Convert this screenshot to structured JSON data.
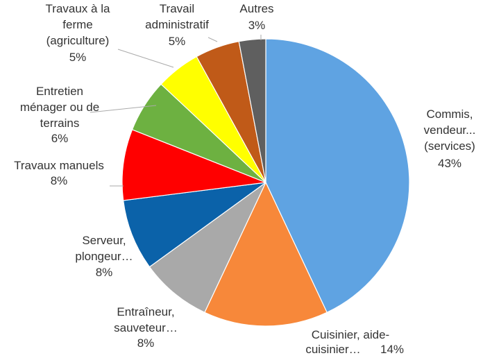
{
  "chart_data": {
    "type": "pie",
    "categories": [
      "Commis,\nvendeur...\n(services)",
      "Cuisinier, aide-\ncuisinier…",
      "Entraîneur,\nsauveteur…",
      "Serveur,\nplongeur…",
      "Travaux manuels",
      "Entretien\nménager ou de\nterrains",
      "Travaux à la\nferme\n(agriculture)",
      "Travail\nadministratif",
      "Autres"
    ],
    "values": [
      43,
      14,
      8,
      8,
      8,
      6,
      5,
      5,
      3
    ],
    "value_labels": [
      "43%",
      "14%",
      "8%",
      "8%",
      "8%",
      "6%",
      "5%",
      "5%",
      "3%"
    ],
    "colors": [
      "#5fa3e2",
      "#f7883a",
      "#a9a9a9",
      "#0b62a9",
      "#ff0000",
      "#6db141",
      "#ffff00",
      "#c05a18",
      "#5f5f5f"
    ]
  }
}
